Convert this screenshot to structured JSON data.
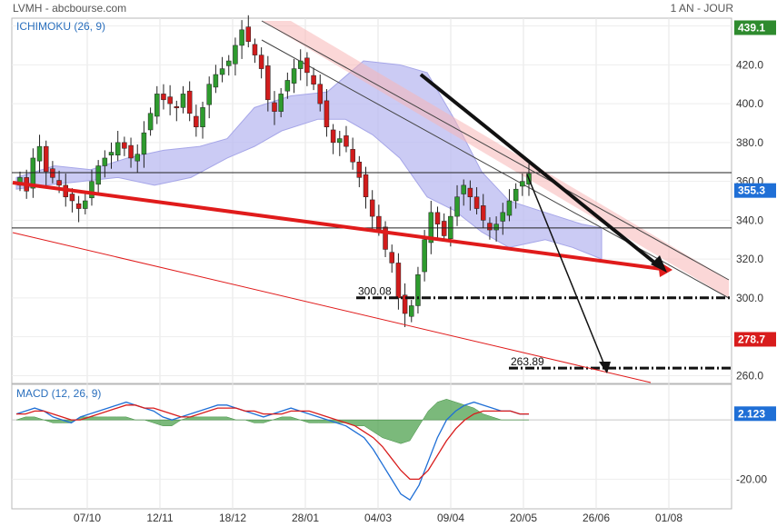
{
  "header": {
    "symbol_source": "LVMH - abcbourse.com",
    "period": "1 AN - JOUR"
  },
  "chart_data": [
    {
      "type": "candlestick",
      "title": "ICHIMOKU (26, 9)",
      "x_ticks": [
        "07/10",
        "12/11",
        "18/12",
        "28/01",
        "04/03",
        "09/04",
        "20/05",
        "26/06",
        "01/08"
      ],
      "y_ticks": [
        260,
        280,
        300,
        320,
        340,
        360,
        380,
        400,
        420,
        440
      ],
      "ylim": [
        256,
        444
      ],
      "price_labels": [
        {
          "value": 439.1,
          "text": "439.1",
          "color": "#2e8b2e"
        },
        {
          "value": 355.3,
          "text": "355.3",
          "color": "#1f6fd6"
        },
        {
          "value": 278.7,
          "text": "278.7",
          "color": "#d81c1c"
        }
      ],
      "annotations": [
        {
          "text": "300.08",
          "value": 300.08
        },
        {
          "text": "263.89",
          "value": 263.89
        }
      ],
      "horizontal_levels": [
        364.5,
        336,
        300.08,
        263.89
      ],
      "close_series": [
        362,
        355,
        372,
        378,
        365,
        362,
        358,
        352,
        350,
        346,
        350,
        360,
        368,
        372,
        375,
        380,
        377,
        372,
        374,
        385,
        395,
        405,
        402,
        400,
        398,
        405,
        395,
        388,
        398,
        410,
        415,
        418,
        422,
        430,
        438,
        432,
        425,
        418,
        402,
        396,
        405,
        412,
        418,
        422,
        416,
        410,
        400,
        388,
        380,
        382,
        378,
        370,
        362,
        352,
        342,
        335,
        325,
        318,
        300,
        292,
        296,
        312,
        330,
        344,
        338,
        332,
        342,
        352,
        358,
        352,
        346,
        340,
        335,
        338,
        344,
        350,
        356,
        360,
        364
      ]
    },
    {
      "type": "line",
      "title": "MACD (12, 26, 9)",
      "y_ticks": [
        -20
      ],
      "ylim": [
        -30,
        12
      ],
      "value_labels": [
        {
          "text": "2.123",
          "color": "#1f6fd6"
        }
      ]
    }
  ]
}
